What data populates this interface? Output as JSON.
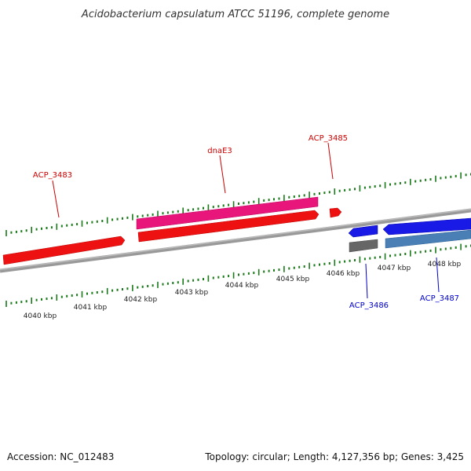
{
  "title": "Acidobacterium capsulatum ATCC 51196, complete genome",
  "footer": {
    "accession": "Accession: NC_012483",
    "topology": "Topology: circular; Length: 4,127,356 bp; Genes: 3,425"
  },
  "ruler": {
    "labels": [
      "4040 kbp",
      "4041 kbp",
      "4042 kbp",
      "4043 kbp",
      "4044 kbp",
      "4045 kbp",
      "4046 kbp",
      "4047 kbp",
      "4048 kbp"
    ]
  },
  "genes": [
    {
      "label": "ACP_3483",
      "strand": "forward",
      "color": "#ee0000"
    },
    {
      "label": "dnaE3",
      "strand": "forward",
      "color": "#ee0000"
    },
    {
      "label": "ACP_3485",
      "strand": "forward",
      "color": "#ee0000"
    },
    {
      "label": "ACP_3486",
      "strand": "reverse",
      "color": "#0000ee"
    },
    {
      "label": "ACP_3487",
      "strand": "reverse",
      "color": "#0000ee"
    }
  ],
  "colors": {
    "forward_gene": "#ee0000",
    "forward_cds": "#e8157a",
    "reverse_gene": "#1a1ae6",
    "reverse_cds_gray": "#666666",
    "reverse_cds_steel": "#4a7fb5",
    "backbone": "#888888",
    "ticks": "#1a7a1a",
    "forward_label": "#cc0000",
    "reverse_label": "#0000cc"
  }
}
